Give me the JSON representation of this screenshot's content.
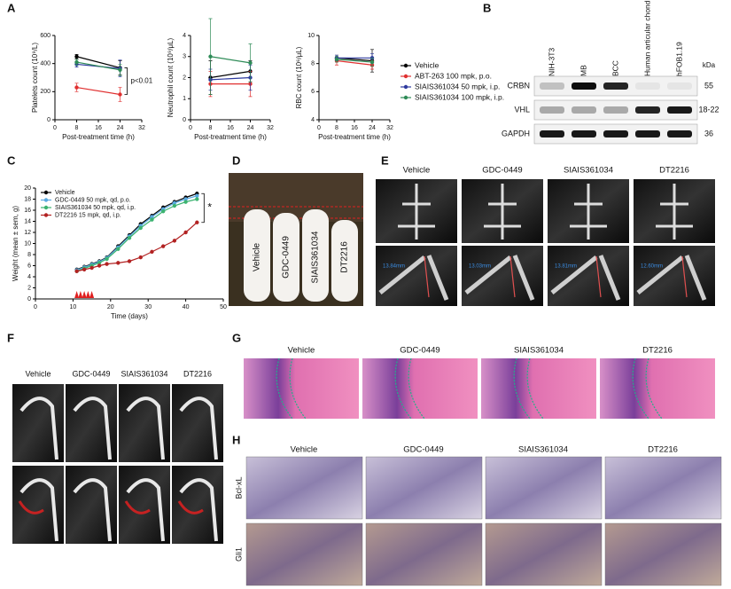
{
  "panel_labels": [
    "A",
    "B",
    "C",
    "D",
    "E",
    "F",
    "G",
    "H"
  ],
  "chart_data": [
    {
      "type": "line",
      "ylabel": "Platelets count (10⁹/L)",
      "xlabel": "Post-treatment time (h)",
      "x": [
        8,
        24
      ],
      "xlim": [
        0,
        32
      ],
      "xticks": [
        0,
        8,
        16,
        24,
        32
      ],
      "ylim": [
        0,
        600
      ],
      "yticks": [
        0,
        200,
        400,
        600
      ],
      "annotation": "p<0.01",
      "series": [
        {
          "color": "#000000",
          "values": [
            450,
            370
          ],
          "errors": [
            15,
            50
          ]
        },
        {
          "color": "#e03030",
          "values": [
            230,
            180
          ],
          "errors": [
            30,
            50
          ]
        },
        {
          "color": "#2e3a9e",
          "values": [
            395,
            365
          ],
          "errors": [
            20,
            60
          ]
        },
        {
          "color": "#2e8b57",
          "values": [
            410,
            355
          ],
          "errors": [
            20,
            40
          ]
        }
      ]
    },
    {
      "type": "line",
      "ylabel": "Neutrophil count (10⁹/μL)",
      "xlabel": "Post-treatment time (h)",
      "x": [
        8,
        24
      ],
      "xlim": [
        0,
        32
      ],
      "xticks": [
        0,
        8,
        16,
        24,
        32
      ],
      "ylim": [
        0,
        4
      ],
      "yticks": [
        0,
        1,
        2,
        3,
        4
      ],
      "series": [
        {
          "color": "#000000",
          "values": [
            2.0,
            2.3
          ],
          "errors": [
            0.8,
            0.5
          ]
        },
        {
          "color": "#e03030",
          "values": [
            1.7,
            1.7
          ],
          "errors": [
            0.6,
            0.6
          ]
        },
        {
          "color": "#2e3a9e",
          "values": [
            1.9,
            2.0
          ],
          "errors": [
            0.5,
            0.6
          ]
        },
        {
          "color": "#2e8b57",
          "values": [
            3.0,
            2.7
          ],
          "errors": [
            1.8,
            0.9
          ]
        }
      ]
    },
    {
      "type": "line",
      "ylabel": "RBC count (10⁶/μL)",
      "xlabel": "Post-treatment time (h)",
      "x": [
        8,
        24
      ],
      "xlim": [
        0,
        32
      ],
      "xticks": [
        0,
        8,
        16,
        24,
        32
      ],
      "ylim": [
        4,
        10
      ],
      "yticks": [
        4,
        6,
        8,
        10
      ],
      "series": [
        {
          "name": "Vehicle",
          "color": "#000000",
          "values": [
            8.4,
            8.2
          ],
          "errors": [
            0.2,
            0.8
          ]
        },
        {
          "name": "ABT-263 100 mpk, p.o.",
          "color": "#e03030",
          "values": [
            8.2,
            7.9
          ],
          "errors": [
            0.3,
            0.3
          ]
        },
        {
          "name": "SIAIS361034 50 mpk, i.p.",
          "color": "#2e3a9e",
          "values": [
            8.4,
            8.4
          ],
          "errors": [
            0.2,
            0.3
          ]
        },
        {
          "name": "SIAIS361034 100 mpk, i.p.",
          "color": "#2e8b57",
          "values": [
            8.3,
            8.1
          ],
          "errors": [
            0.2,
            0.3
          ]
        }
      ]
    },
    {
      "type": "line",
      "ylabel": "Weight (mean ± sem, g)",
      "xlabel": "Time (days)",
      "x": [
        11,
        13,
        15,
        17,
        19,
        22,
        25,
        28,
        31,
        34,
        37,
        40,
        43
      ],
      "xlim": [
        0,
        50
      ],
      "xticks": [
        0,
        10,
        20,
        30,
        40,
        50
      ],
      "ylim": [
        0,
        20
      ],
      "yticks": [
        0,
        2,
        4,
        6,
        8,
        10,
        12,
        14,
        16,
        18,
        20
      ],
      "annotation": "*",
      "dosing_days": [
        11,
        12,
        13,
        14,
        15
      ],
      "series": [
        {
          "name": "Vehicle",
          "color": "#000000",
          "values": [
            5.3,
            5.8,
            6.3,
            6.8,
            7.5,
            9.5,
            11.5,
            13.5,
            15,
            16.5,
            17.5,
            18.3,
            19
          ]
        },
        {
          "name": "GDC-0449 50 mpk, qd, p.o.",
          "color": "#5aa9e0",
          "values": [
            5.2,
            5.7,
            6.2,
            6.7,
            7.4,
            9.3,
            11.3,
            13.2,
            14.8,
            16.2,
            17.3,
            18,
            18.6
          ]
        },
        {
          "name": "SIAIS361034 50 mpk, qd, i.p.",
          "color": "#3cb371",
          "values": [
            5.0,
            5.5,
            6.0,
            6.5,
            7.2,
            9,
            11,
            12.8,
            14.3,
            15.8,
            16.8,
            17.5,
            18
          ]
        },
        {
          "name": "DT2216 15 mpk, qd, i.p.",
          "color": "#b22222",
          "values": [
            5.0,
            5.3,
            5.6,
            6,
            6.3,
            6.5,
            6.8,
            7.5,
            8.5,
            9.5,
            10.5,
            12,
            13.8
          ]
        }
      ]
    }
  ],
  "blot": {
    "columns": [
      "NIH-3T3",
      "MB",
      "BCC",
      "Human articular chondrocytes",
      "hFOB1.19"
    ],
    "kda_header": "kDa",
    "rows": [
      {
        "name": "CRBN",
        "kda": "55"
      },
      {
        "name": "VHL",
        "kda": "18-22"
      },
      {
        "name": "GAPDH",
        "kda": "36"
      }
    ]
  },
  "panel_d": {
    "labels": [
      "Vehicle",
      "GDC-0449",
      "SIAIS361034",
      "DT2216"
    ]
  },
  "panel_e": {
    "columns": [
      "Vehicle",
      "GDC-0449",
      "SIAIS361034",
      "DT2216"
    ],
    "measurements": [
      "13.84mm",
      "13.03mm",
      "13.81mm",
      "12.60mm"
    ]
  },
  "panel_f": {
    "columns": [
      "Vehicle",
      "GDC-0449",
      "SIAIS361034",
      "DT2216"
    ]
  },
  "panel_g": {
    "columns": [
      "Vehicle",
      "GDC-0449",
      "SIAIS361034",
      "DT2216"
    ]
  },
  "panel_h": {
    "columns": [
      "Vehicle",
      "GDC-0449",
      "SIAIS361034",
      "DT2216"
    ],
    "rows": [
      "Bcl-xL",
      "Gli1"
    ]
  }
}
